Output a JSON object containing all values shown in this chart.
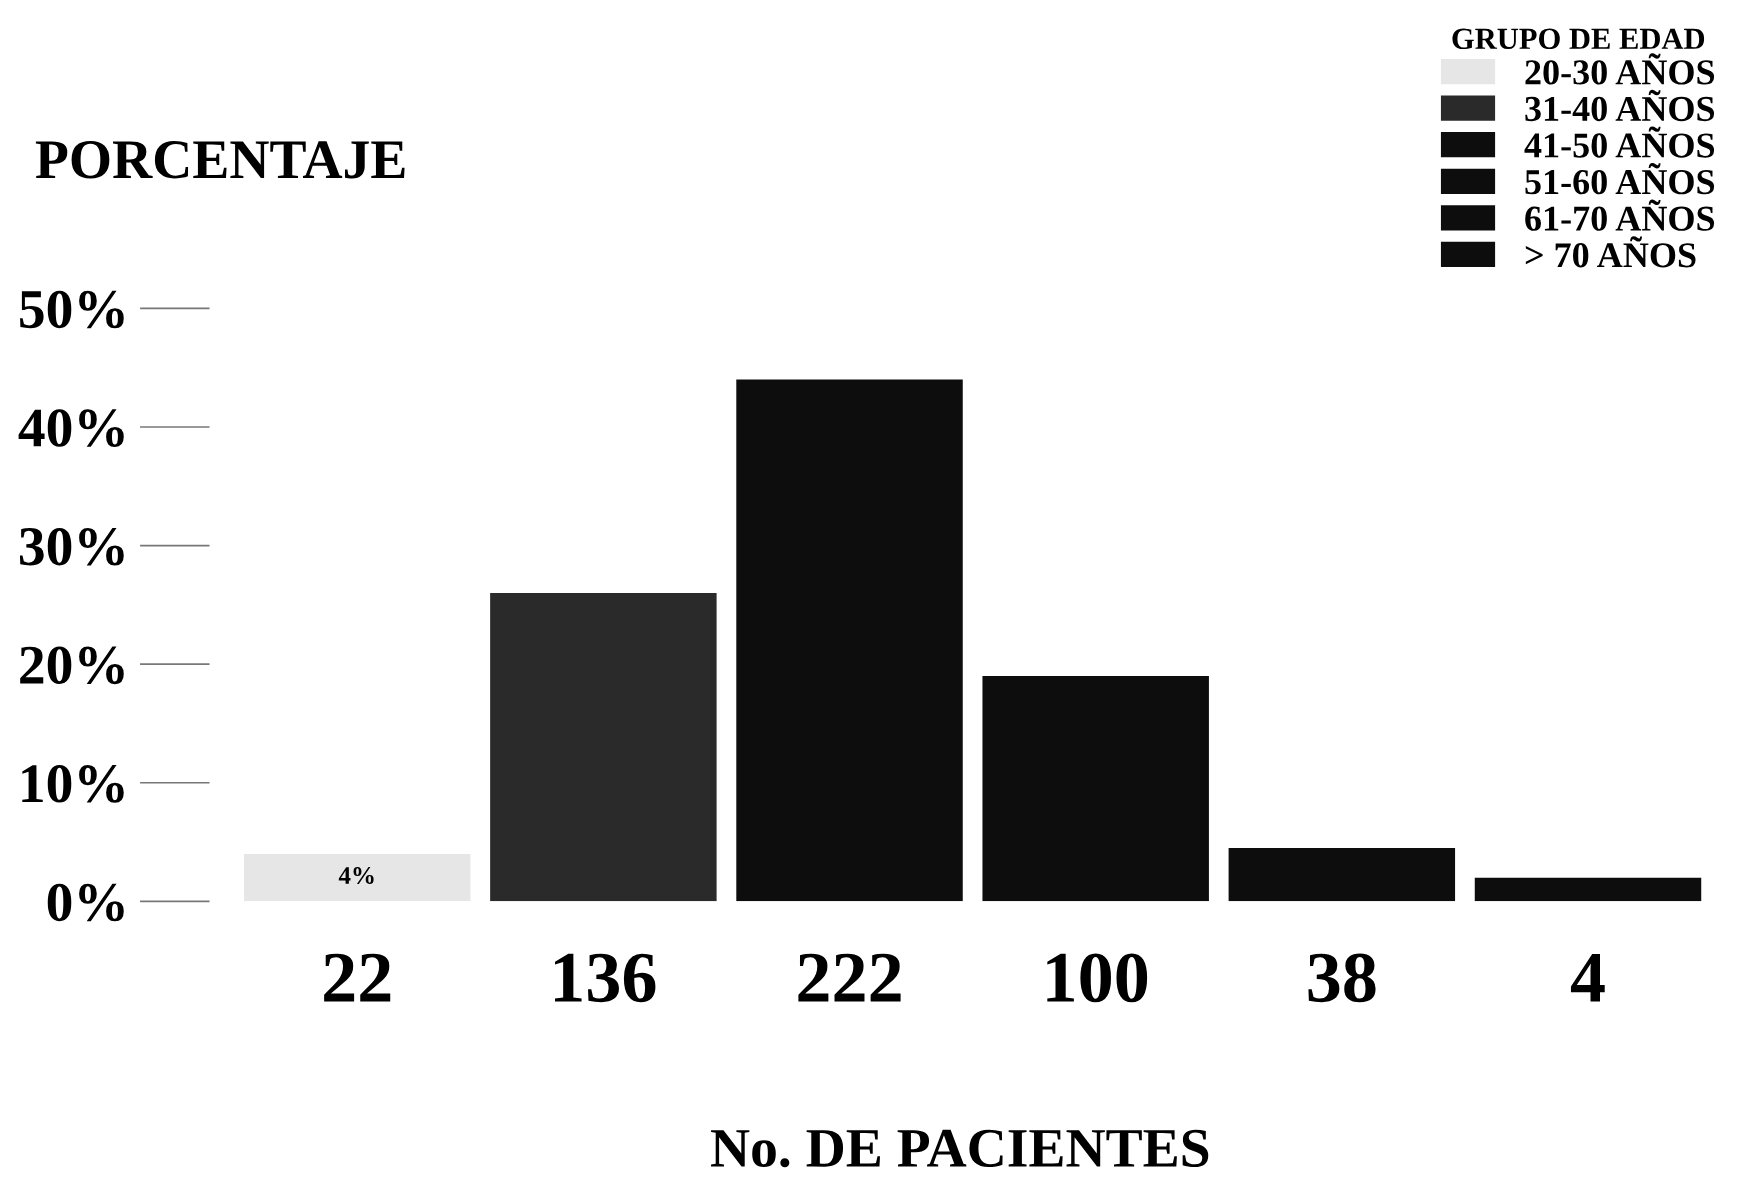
{
  "chart_data": {
    "type": "bar",
    "ylabel": "PORCENTAJE",
    "xlabel": "No. DE PACIENTES",
    "legend_title": "GRUPO DE EDAD",
    "categories": [
      "22",
      "136",
      "222",
      "100",
      "38",
      "4"
    ],
    "series": [
      {
        "name": "20-30 AÑOS",
        "color": "#e6e6e6",
        "values": [
          4,
          null,
          null,
          null,
          null,
          null
        ],
        "value_labels": [
          "4%",
          null,
          null,
          null,
          null,
          null
        ]
      },
      {
        "name": "31-40 AÑOS",
        "color": "#2a2a2a",
        "values": [
          null,
          26,
          null,
          null,
          null,
          null
        ]
      },
      {
        "name": "41-50 AÑOS",
        "color": "#0d0d0d",
        "values": [
          null,
          null,
          44,
          null,
          null,
          null
        ]
      },
      {
        "name": "51-60 AÑOS",
        "color": "#0d0d0d",
        "values": [
          null,
          null,
          null,
          19,
          null,
          null
        ]
      },
      {
        "name": "61-70 AÑOS",
        "color": "#0d0d0d",
        "values": [
          null,
          null,
          null,
          null,
          4.5,
          null
        ]
      },
      {
        "name": "> 70 AÑOS",
        "color": "#0d0d0d",
        "values": [
          null,
          null,
          null,
          null,
          null,
          2
        ]
      }
    ],
    "ylim": [
      0,
      56
    ],
    "yticks": [
      {
        "value": 0,
        "label": "0%"
      },
      {
        "value": 10,
        "label": "10%"
      },
      {
        "value": 20,
        "label": "20%"
      },
      {
        "value": 30,
        "label": "30%"
      },
      {
        "value": 40,
        "label": "40%"
      },
      {
        "value": 50,
        "label": "50%"
      }
    ],
    "grid": false,
    "legend": "top right"
  }
}
